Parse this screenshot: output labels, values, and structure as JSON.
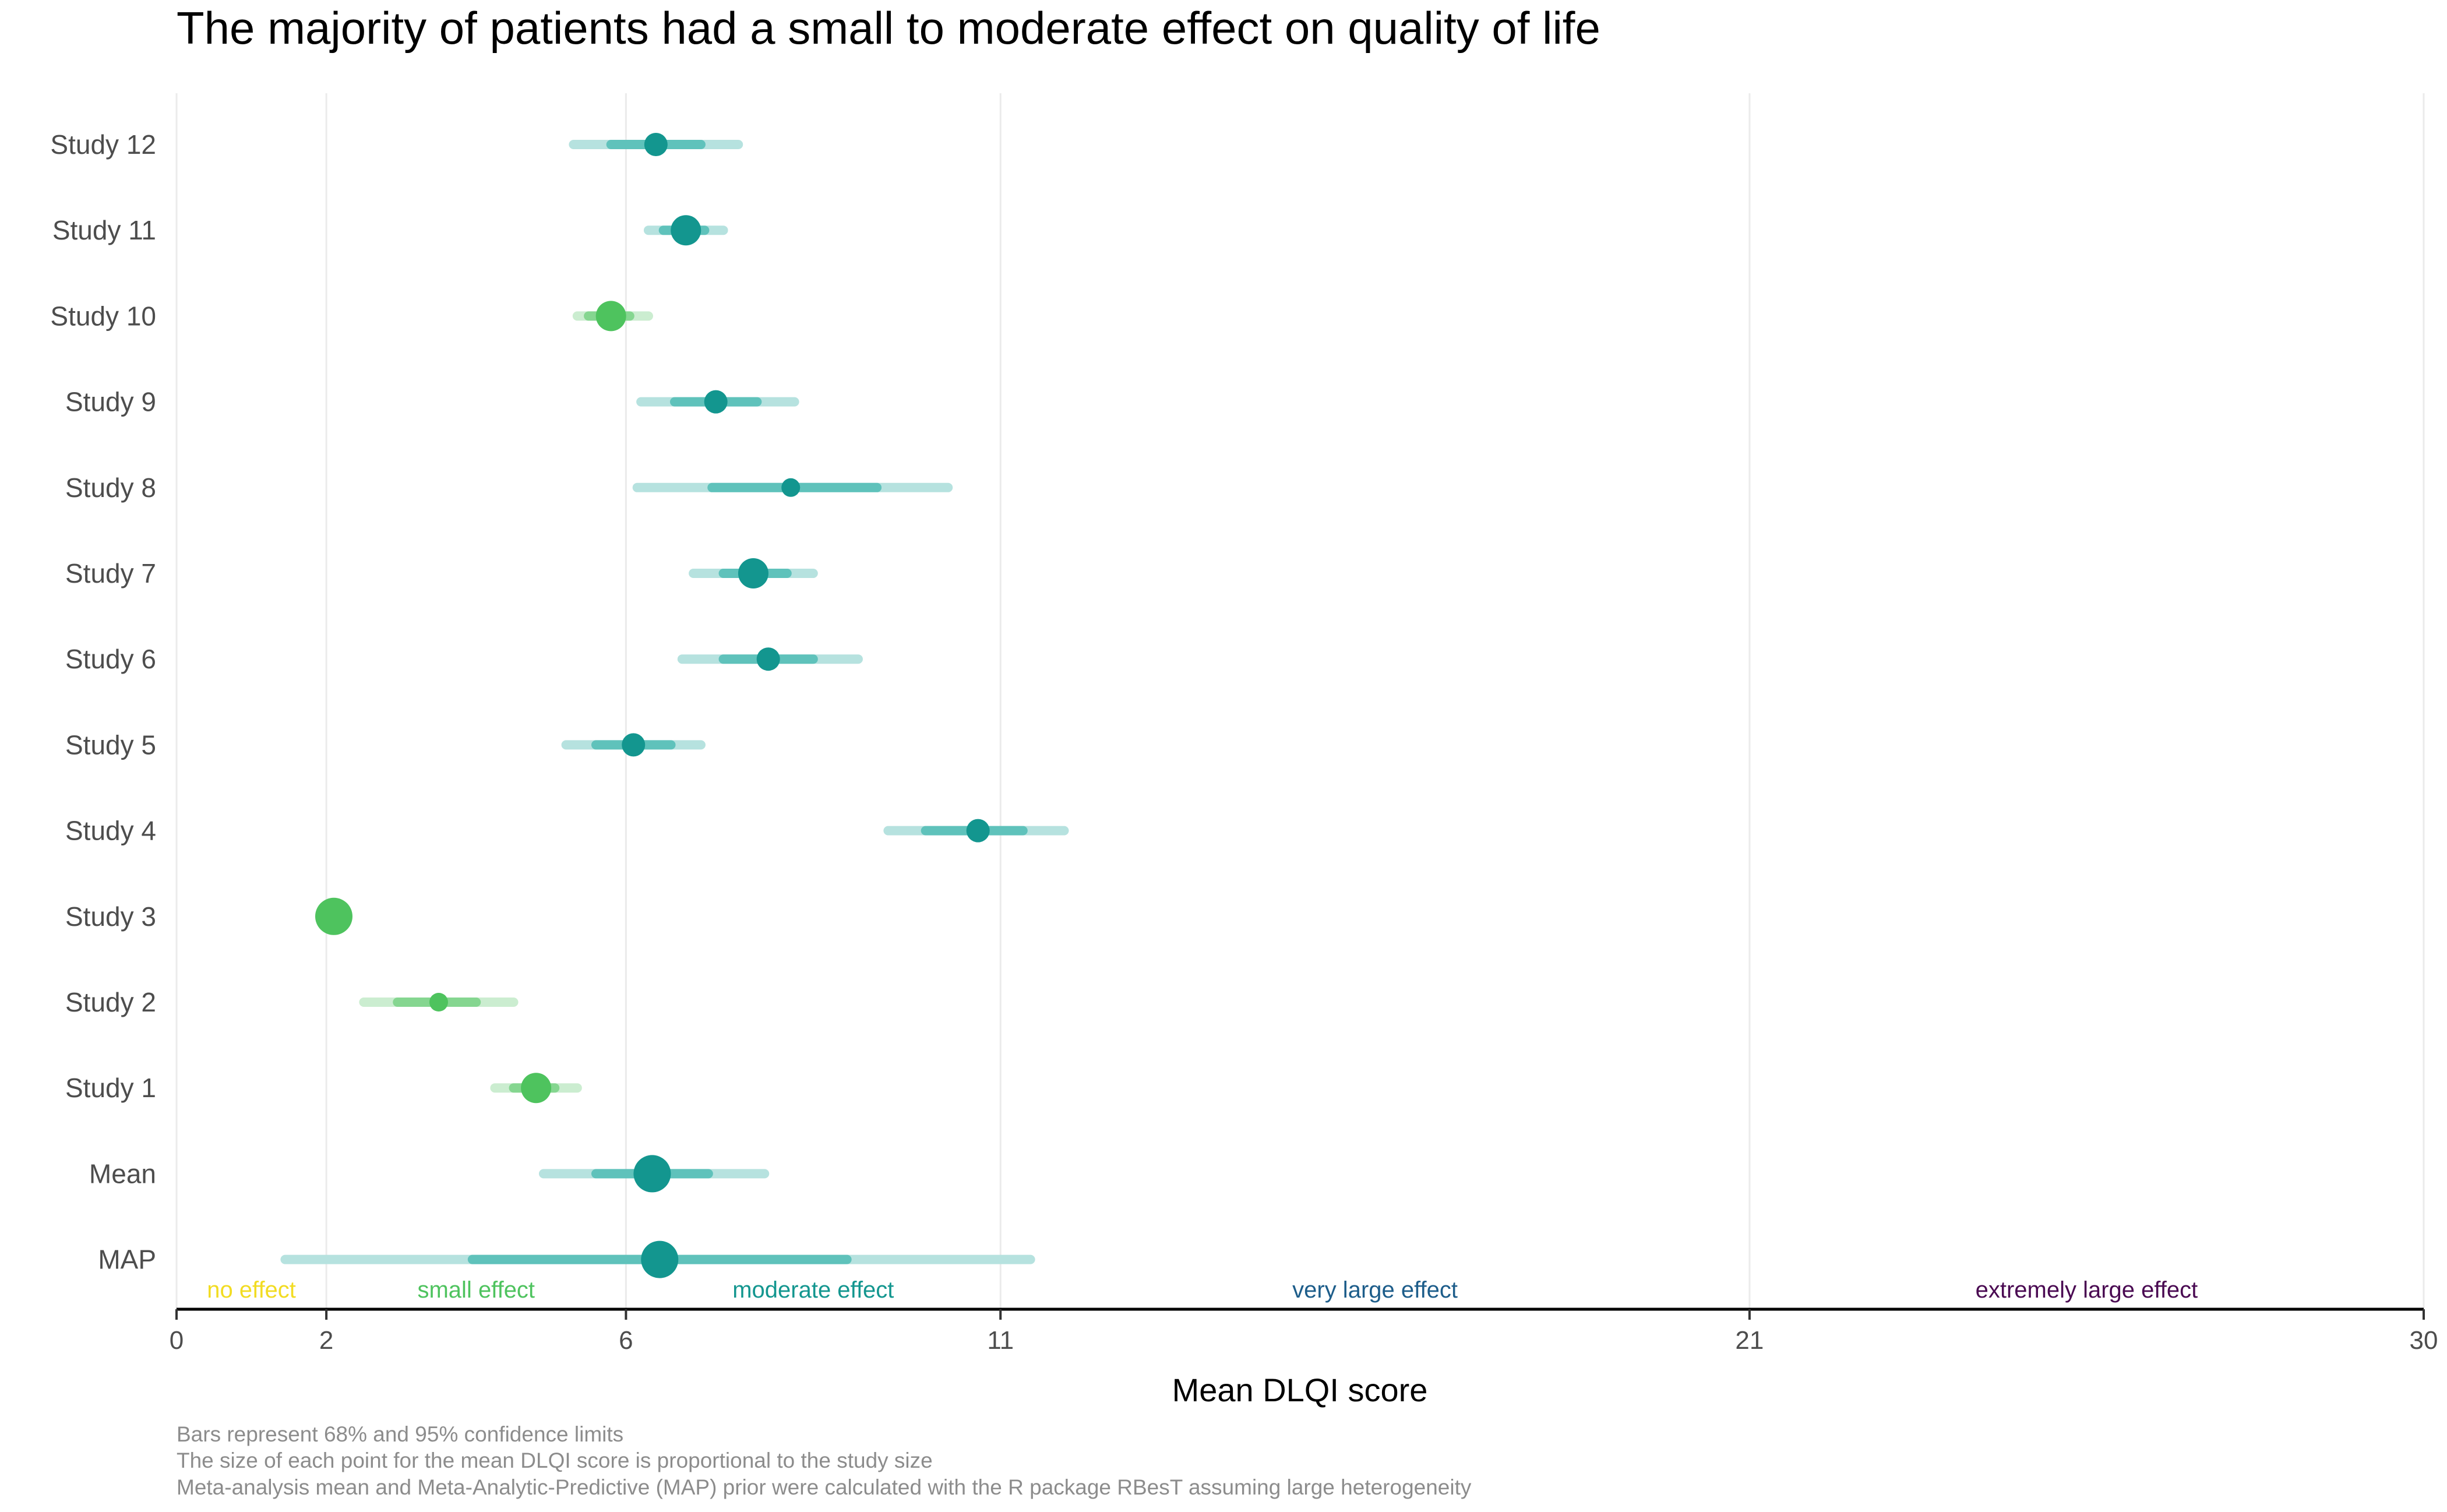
{
  "chart_data": {
    "type": "forest",
    "title": "The majority of patients had a small to moderate effect on quality of life",
    "xlabel": "Mean DLQI score",
    "xlim": [
      0,
      30
    ],
    "x_ticks": [
      0,
      2,
      6,
      11,
      21,
      30
    ],
    "grid": "vertical at ticks",
    "colors": {
      "small": "#4ec35e",
      "moderate": "#13968f",
      "small_ci_light": "#cbedd0",
      "small_ci_mid": "#85d690",
      "moderate_ci_light": "#b6e2df",
      "moderate_ci_mid": "#5fc2bb"
    },
    "bands": [
      {
        "label": "no effect",
        "range": [
          0,
          2
        ],
        "color": "#f2dc22"
      },
      {
        "label": "small effect",
        "range": [
          2,
          6
        ],
        "color": "#4ec35e"
      },
      {
        "label": "moderate effect",
        "range": [
          6,
          11
        ],
        "color": "#13968f"
      },
      {
        "label": "very large effect",
        "range": [
          11,
          21
        ],
        "color": "#1d5d8a"
      },
      {
        "label": "extremely large effect",
        "range": [
          21,
          30
        ],
        "color": "#4a0a52"
      }
    ],
    "rows": [
      {
        "label": "Study 12",
        "mean": 6.4,
        "ci68": [
          5.8,
          7.0
        ],
        "ci95": [
          5.3,
          7.5
        ],
        "size": 2,
        "category": "moderate"
      },
      {
        "label": "Study 11",
        "mean": 6.8,
        "ci68": [
          6.5,
          7.05
        ],
        "ci95": [
          6.3,
          7.3
        ],
        "size": 3,
        "category": "moderate"
      },
      {
        "label": "Study 10",
        "mean": 5.8,
        "ci68": [
          5.5,
          6.05
        ],
        "ci95": [
          5.35,
          6.3
        ],
        "size": 3,
        "category": "small"
      },
      {
        "label": "Study 9",
        "mean": 7.2,
        "ci68": [
          6.65,
          7.75
        ],
        "ci95": [
          6.2,
          8.25
        ],
        "size": 2,
        "category": "moderate"
      },
      {
        "label": "Study 8",
        "mean": 8.2,
        "ci68": [
          7.15,
          9.35
        ],
        "ci95": [
          6.15,
          10.3
        ],
        "size": 1,
        "category": "moderate"
      },
      {
        "label": "Study 7",
        "mean": 7.7,
        "ci68": [
          7.3,
          8.15
        ],
        "ci95": [
          6.9,
          8.5
        ],
        "size": 3,
        "category": "moderate"
      },
      {
        "label": "Study 6",
        "mean": 7.9,
        "ci68": [
          7.3,
          8.5
        ],
        "ci95": [
          6.75,
          9.1
        ],
        "size": 2,
        "category": "moderate"
      },
      {
        "label": "Study 5",
        "mean": 6.1,
        "ci68": [
          5.6,
          6.6
        ],
        "ci95": [
          5.2,
          7.0
        ],
        "size": 2,
        "category": "moderate"
      },
      {
        "label": "Study 4",
        "mean": 10.7,
        "ci68": [
          10.0,
          11.3
        ],
        "ci95": [
          9.5,
          11.85
        ],
        "size": 2,
        "category": "moderate"
      },
      {
        "label": "Study 3",
        "mean": 2.1,
        "ci68": [
          2.0,
          2.2
        ],
        "ci95": [
          1.95,
          2.25
        ],
        "size": 4,
        "category": "small"
      },
      {
        "label": "Study 2",
        "mean": 3.5,
        "ci68": [
          2.95,
          4.0
        ],
        "ci95": [
          2.5,
          4.5
        ],
        "size": 1,
        "category": "small"
      },
      {
        "label": "Study 1",
        "mean": 4.8,
        "ci68": [
          4.5,
          5.05
        ],
        "ci95": [
          4.25,
          5.35
        ],
        "size": 3,
        "category": "small"
      },
      {
        "label": "Mean",
        "mean": 6.35,
        "ci68": [
          5.6,
          7.1
        ],
        "ci95": [
          4.9,
          7.85
        ],
        "size": 4,
        "category": "moderate"
      },
      {
        "label": "MAP",
        "mean": 6.45,
        "ci68": [
          3.95,
          8.95
        ],
        "ci95": [
          1.45,
          11.4
        ],
        "size": 4,
        "category": "moderate"
      }
    ],
    "caption": [
      "Bars represent 68% and 95% confidence limits",
      "The size of each point for the mean DLQI score is proportional to the study size",
      "Meta-analysis mean and Meta-Analytic-Predictive (MAP) prior were calculated with the R package RBesT assuming large heterogeneity"
    ]
  }
}
